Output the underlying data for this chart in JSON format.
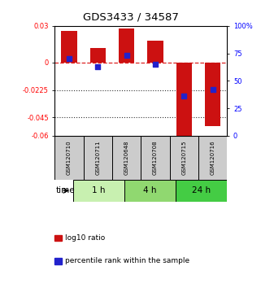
{
  "title": "GDS3433 / 34587",
  "samples": [
    "GSM120710",
    "GSM120711",
    "GSM120648",
    "GSM120708",
    "GSM120715",
    "GSM120716"
  ],
  "log10_ratio": [
    0.026,
    0.012,
    0.028,
    0.018,
    -0.063,
    -0.052
  ],
  "percentile_rank": [
    70,
    63,
    73,
    65,
    36,
    42
  ],
  "groups": [
    {
      "label": "1 h",
      "indices": [
        0,
        1
      ],
      "color": "#c8f0b0"
    },
    {
      "label": "4 h",
      "indices": [
        2,
        3
      ],
      "color": "#90d870"
    },
    {
      "label": "24 h",
      "indices": [
        4,
        5
      ],
      "color": "#44cc44"
    }
  ],
  "ylim_left": [
    -0.06,
    0.03
  ],
  "ylim_right": [
    0,
    100
  ],
  "yticks_left": [
    0.03,
    0,
    -0.0225,
    -0.045,
    -0.06
  ],
  "ytick_labels_left": [
    "0.03",
    "0",
    "-0.0225",
    "-0.045",
    "-0.06"
  ],
  "yticks_right": [
    100,
    75,
    50,
    25,
    0
  ],
  "ytick_labels_right": [
    "100%",
    "75",
    "50",
    "25",
    "0"
  ],
  "bar_color": "#cc1111",
  "dot_color": "#2222cc",
  "dashed_line_color": "#dd2222",
  "dotted_line_color": "#333333",
  "bg_color": "#ffffff",
  "sample_box_color": "#cccccc",
  "time_label": "time",
  "legend_bar_label": "log10 ratio",
  "legend_dot_label": "percentile rank within the sample",
  "bar_width": 0.55
}
